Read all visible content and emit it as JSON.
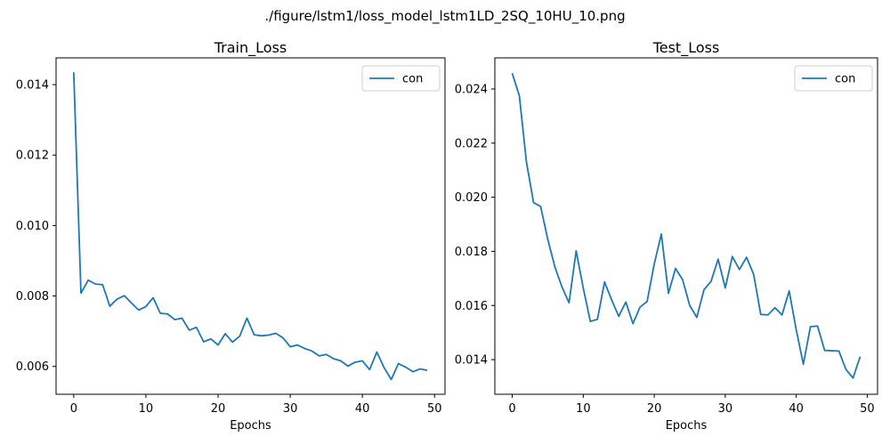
{
  "figure": {
    "suptitle": "./figure/lstm1/loss_model_lstm1LD_2SQ_10HU_10.png"
  },
  "chart_data": [
    {
      "type": "line",
      "title": "Train_Loss",
      "xlabel": "Epochs",
      "ylabel": "",
      "xlim": [
        -2.45,
        51.45
      ],
      "ylim": [
        0.00521,
        0.01476
      ],
      "xticks": [
        0,
        10,
        20,
        30,
        40,
        50
      ],
      "xtick_labels": [
        "0",
        "10",
        "20",
        "30",
        "40",
        "50"
      ],
      "yticks": [
        0.006,
        0.008,
        0.01,
        0.012,
        0.014
      ],
      "ytick_labels": [
        "0.006",
        "0.008",
        "0.010",
        "0.012",
        "0.014"
      ],
      "grid": false,
      "legend": "upper right",
      "series": [
        {
          "name": "con",
          "color": "#1f77b4",
          "x": [
            0,
            1,
            2,
            3,
            4,
            5,
            6,
            7,
            8,
            9,
            10,
            11,
            12,
            13,
            14,
            15,
            16,
            17,
            18,
            19,
            20,
            21,
            22,
            23,
            24,
            25,
            26,
            27,
            28,
            29,
            30,
            31,
            32,
            33,
            34,
            35,
            36,
            37,
            38,
            39,
            40,
            41,
            42,
            43,
            44,
            45,
            46,
            47,
            48,
            49
          ],
          "y": [
            0.01435,
            0.00808,
            0.00845,
            0.00834,
            0.00832,
            0.00771,
            0.00791,
            0.00801,
            0.0078,
            0.0076,
            0.0077,
            0.00795,
            0.00751,
            0.00749,
            0.00733,
            0.00737,
            0.00703,
            0.00711,
            0.0067,
            0.00678,
            0.00661,
            0.00693,
            0.00669,
            0.00686,
            0.00737,
            0.0069,
            0.00687,
            0.00689,
            0.00694,
            0.00681,
            0.00656,
            0.00661,
            0.00651,
            0.00644,
            0.0063,
            0.00634,
            0.00622,
            0.00616,
            0.00601,
            0.00612,
            0.00616,
            0.00591,
            0.00641,
            0.00597,
            0.00563,
            0.00608,
            0.00598,
            0.00585,
            0.00593,
            0.00589
          ]
        }
      ]
    },
    {
      "type": "line",
      "title": "Test_Loss",
      "xlabel": "Epochs",
      "ylabel": "",
      "xlim": [
        -2.45,
        51.45
      ],
      "ylim": [
        0.01272,
        0.02515
      ],
      "xticks": [
        0,
        10,
        20,
        30,
        40,
        50
      ],
      "xtick_labels": [
        "0",
        "10",
        "20",
        "30",
        "40",
        "50"
      ],
      "yticks": [
        0.014,
        0.016,
        0.018,
        0.02,
        0.022,
        0.024
      ],
      "ytick_labels": [
        "0.014",
        "0.016",
        "0.018",
        "0.020",
        "0.022",
        "0.024"
      ],
      "grid": false,
      "legend": "upper right",
      "series": [
        {
          "name": "con",
          "color": "#1f77b4",
          "x": [
            0,
            1,
            2,
            3,
            4,
            5,
            6,
            7,
            8,
            9,
            10,
            11,
            12,
            13,
            14,
            15,
            16,
            17,
            18,
            19,
            20,
            21,
            22,
            23,
            24,
            25,
            26,
            27,
            28,
            29,
            30,
            31,
            32,
            33,
            34,
            35,
            36,
            37,
            38,
            39,
            40,
            41,
            42,
            43,
            44,
            45,
            46,
            47,
            48,
            49
          ],
          "y": [
            0.02458,
            0.02375,
            0.0213,
            0.0198,
            0.01966,
            0.01845,
            0.01743,
            0.01669,
            0.0161,
            0.01802,
            0.01665,
            0.01541,
            0.01549,
            0.01687,
            0.01621,
            0.0156,
            0.01613,
            0.01533,
            0.01594,
            0.01615,
            0.01753,
            0.01864,
            0.01645,
            0.01737,
            0.01695,
            0.016,
            0.01556,
            0.01658,
            0.01689,
            0.01771,
            0.01665,
            0.01781,
            0.01733,
            0.01778,
            0.01715,
            0.01567,
            0.01565,
            0.01592,
            0.01565,
            0.01654,
            0.0151,
            0.01383,
            0.01522,
            0.01524,
            0.01434,
            0.01433,
            0.01432,
            0.01364,
            0.01332,
            0.01411
          ]
        }
      ]
    }
  ]
}
